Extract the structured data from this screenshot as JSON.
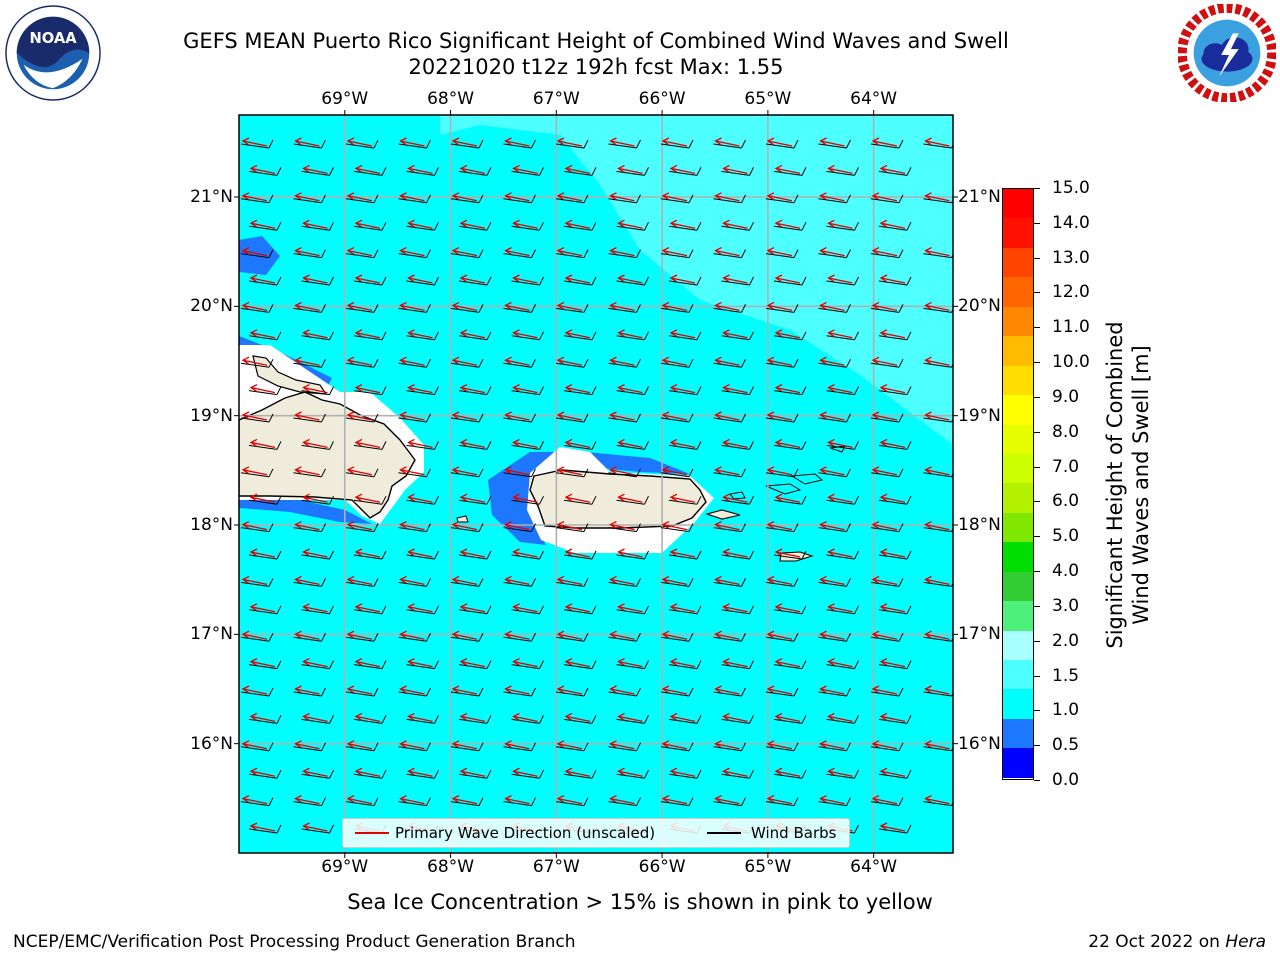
{
  "title": {
    "line1": "GEFS MEAN Puerto Rico Significant Height of Combined Wind Waves and Swell",
    "line2": "20221020 t12z 192h fcst   Max: 1.55"
  },
  "logos": {
    "left": "NOAA",
    "left_ring": "NATIONAL OCEANIC AND ATMOSPHERIC ADMINISTRATION · U.S. DEPARTMENT OF COMMERCE",
    "right_ring": "NATIONAL WEATHER SERVICE"
  },
  "axes": {
    "lon_labels": [
      "69°W",
      "68°W",
      "67°W",
      "66°W",
      "65°W",
      "64°W"
    ],
    "lat_labels": [
      "21°N",
      "20°N",
      "19°N",
      "18°N",
      "17°N",
      "16°N"
    ],
    "lon_values": [
      -69,
      -68,
      -67,
      -66,
      -65,
      -64
    ],
    "lat_values": [
      21,
      20,
      19,
      18,
      17,
      16
    ],
    "lon_range": [
      -70.0,
      -63.25
    ],
    "lat_range": [
      15.0,
      21.75
    ]
  },
  "colorbar": {
    "label": "Significant Height of Combined Wind Waves and Swell [m]",
    "label_line1": "Significant Height of Combined",
    "label_line2": "Wind Waves and Swell [m]",
    "ticks": [
      "15.0",
      "14.0",
      "13.0",
      "12.0",
      "11.0",
      "10.0",
      "9.0",
      "8.0",
      "7.0",
      "6.0",
      "5.0",
      "4.0",
      "3.0",
      "2.0",
      "1.5",
      "1.0",
      "0.5",
      "0.0"
    ],
    "colors_bottom_to_top": [
      "#0000ff",
      "#1e78ff",
      "#00ffff",
      "#4dffff",
      "#aaffff",
      "#4cf07a",
      "#33cc33",
      "#00dd00",
      "#7fe600",
      "#b3f000",
      "#ccff00",
      "#e6ff00",
      "#ffff00",
      "#ffdd00",
      "#ffbb00",
      "#ff8800",
      "#ff6600",
      "#ff4400",
      "#ff1100",
      "#ff0000"
    ]
  },
  "colors": {
    "ocean": "#00ffff",
    "ocean_light": "#4dffff",
    "shallow": "#1e78ff",
    "land": "#efecdc",
    "wave_arrow": "#e00000",
    "barb": "#000000",
    "grid": "#b0b0b0"
  },
  "legend": {
    "wave": "Primary Wave Direction (unscaled)",
    "barb": "Wind Barbs"
  },
  "note": "Sea Ice Concentration > 15% is shown in pink to yellow",
  "footer": {
    "left": "NCEP/EMC/Verification Post Processing Product Generation Branch",
    "date": "22 Oct 2022 on ",
    "host": "Hera"
  }
}
